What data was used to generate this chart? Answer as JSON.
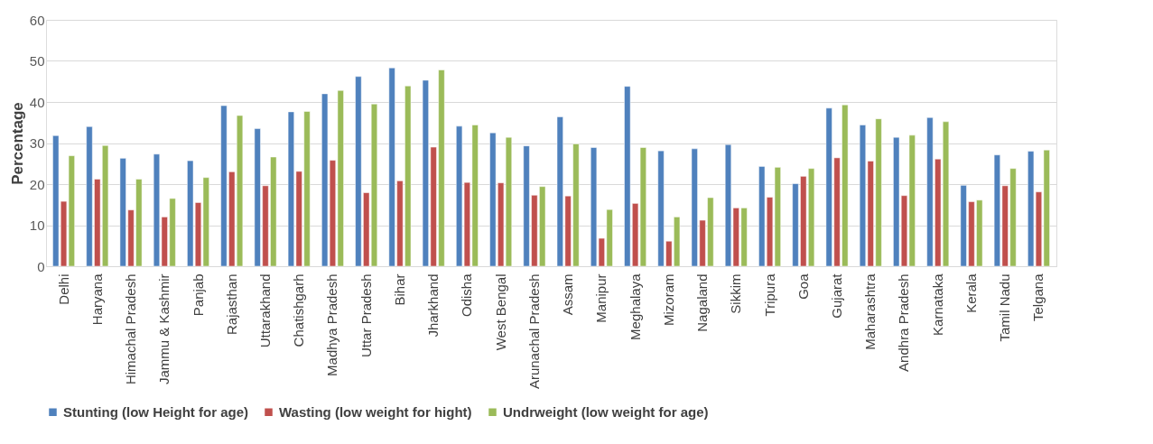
{
  "chart_data": {
    "type": "bar",
    "ylabel": "Percentage",
    "categories": [
      "Delhi",
      "Haryana",
      "Himachal Pradesh",
      "Jammu & Kashmir",
      "Panjab",
      "Rajasthan",
      "Uttarakhand",
      "Chatishgarh",
      "Madhya Pradesh",
      "Uttar Pradesh",
      "Bihar",
      "Jharkhand",
      "Odisha",
      "West Bengal",
      "Arunachal Pradesh",
      "Assam",
      "Manipur",
      "Meghalaya",
      "Mizoram",
      "Nagaland",
      "Sikkim",
      "Tripura",
      "Goa",
      "Gujarat",
      "Maharashtra",
      "Andhra Pradesh",
      "Karnataka",
      "Kerala",
      "Tamil Nadu",
      "Telgana"
    ],
    "series": [
      {
        "name": "Stunting (low Height for age)",
        "color": "#4f81bd",
        "values": [
          31.8,
          34,
          26.3,
          27.3,
          25.7,
          39.1,
          33.5,
          37.6,
          42,
          46.2,
          48.3,
          45.3,
          34.1,
          32.5,
          29.3,
          36.4,
          28.9,
          43.8,
          28.1,
          28.6,
          29.6,
          24.3,
          20.1,
          38.5,
          34.4,
          31.4,
          36.2,
          19.7,
          27.1,
          28
        ]
      },
      {
        "name": "Wasting (low weight for hight)",
        "color": "#c0504d",
        "values": [
          15.8,
          21.2,
          13.7,
          12,
          15.5,
          23,
          19.6,
          23.1,
          25.8,
          17.9,
          20.8,
          29,
          20.4,
          20.3,
          17.3,
          17.1,
          6.8,
          15.3,
          6.1,
          11.2,
          14.2,
          16.8,
          21.9,
          26.4,
          25.6,
          17.2,
          26.1,
          15.7,
          19.6,
          18.1
        ]
      },
      {
        "name": "Undrweight (low weight for age)",
        "color": "#9bbb59",
        "values": [
          26.9,
          29.4,
          21.2,
          16.5,
          21.6,
          36.7,
          26.6,
          37.7,
          42.8,
          39.5,
          43.9,
          47.8,
          34.4,
          31.4,
          19.4,
          29.8,
          13.8,
          28.9,
          12,
          16.7,
          14.2,
          24.1,
          23.8,
          39.3,
          35.9,
          31.9,
          35.2,
          16.1,
          23.8,
          28.3
        ]
      }
    ],
    "ylim": [
      0,
      60
    ],
    "yticks": [
      0,
      10,
      20,
      30,
      40,
      50,
      60
    ],
    "grid": "y",
    "legend": "bottom"
  }
}
